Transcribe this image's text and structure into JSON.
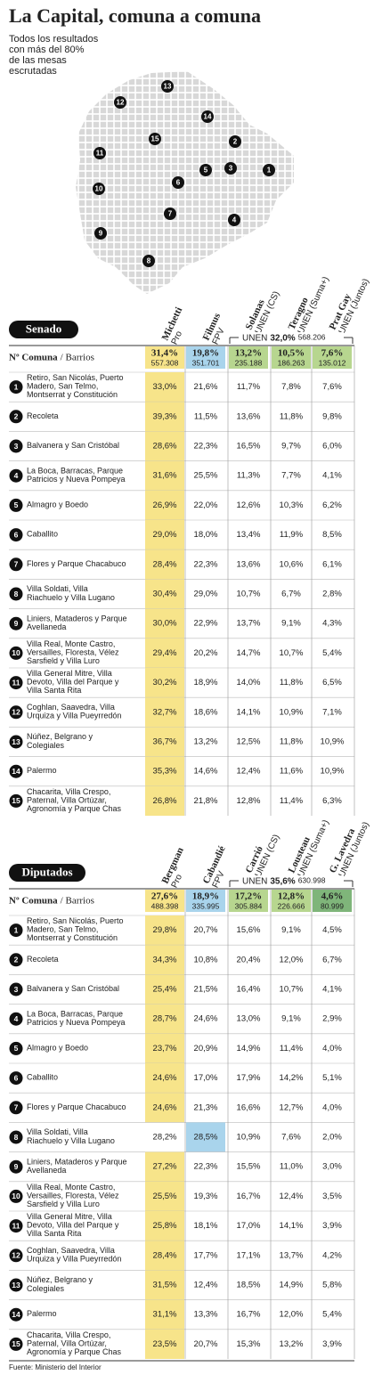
{
  "header": {
    "title": "La Capital, comuna a comuna",
    "subtitle": [
      "Todos los resultados",
      "con más del 80%",
      "de las mesas",
      "escrutadas"
    ]
  },
  "map": {
    "labels": [
      {
        "text": "13",
        "x": 188,
        "y": 97
      },
      {
        "text": "12",
        "x": 135,
        "y": 115
      },
      {
        "text": "14",
        "x": 233,
        "y": 131
      },
      {
        "text": "15",
        "x": 174,
        "y": 156
      },
      {
        "text": "2",
        "x": 264,
        "y": 159
      },
      {
        "text": "11",
        "x": 112,
        "y": 172
      },
      {
        "text": "5",
        "x": 231,
        "y": 191
      },
      {
        "text": "3",
        "x": 259,
        "y": 189
      },
      {
        "text": "1",
        "x": 302,
        "y": 191
      },
      {
        "text": "10",
        "x": 111,
        "y": 212
      },
      {
        "text": "6",
        "x": 200,
        "y": 205
      },
      {
        "text": "7",
        "x": 191,
        "y": 240
      },
      {
        "text": "4",
        "x": 263,
        "y": 247
      },
      {
        "text": "9",
        "x": 113,
        "y": 262
      },
      {
        "text": "8",
        "x": 167,
        "y": 293
      }
    ]
  },
  "tables": [
    {
      "title": "Senado",
      "comuna_label": "Nº Comuna",
      "barrios_label": "/ Barrios",
      "candidates": [
        {
          "name": "Michetti",
          "party": "Pro",
          "total": "31,4%",
          "votes": "557.308"
        },
        {
          "name": "Filmus",
          "party": "FPV",
          "total": "19,8%",
          "votes": "351.701"
        },
        {
          "name": "Solanas",
          "party": "UNEN (CS)",
          "total": "13,2%",
          "votes": "235.188"
        },
        {
          "name": "Teragno",
          "party": "UNEN (Suma+)",
          "total": "10,5%",
          "votes": "186.263"
        },
        {
          "name": "Prat Gay",
          "party": "UNEN (Juntos)",
          "total": "7,6%",
          "votes": "135.012"
        }
      ],
      "group": {
        "name": "UNEN",
        "total": "32,0%",
        "votes": "568.206"
      },
      "rows": [
        {
          "n": "1",
          "barrios": "Retiro, San Nicolás, Puerto Madero, San Telmo, Montserrat y Constitución",
          "values": [
            "33,0%",
            "21,6%",
            "11,7%",
            "7,8%",
            "7,6%"
          ]
        },
        {
          "n": "2",
          "barrios": "Recoleta",
          "values": [
            "39,3%",
            "11,5%",
            "13,6%",
            "11,8%",
            "9,8%"
          ]
        },
        {
          "n": "3",
          "barrios": "Balvanera y San Cristóbal",
          "values": [
            "28,6%",
            "22,3%",
            "16,5%",
            "9,7%",
            "6,0%"
          ]
        },
        {
          "n": "4",
          "barrios": "La Boca, Barracas, Parque Patricios y Nueva Pompeya",
          "values": [
            "31,6%",
            "25,5%",
            "11,3%",
            "7,7%",
            "4,1%"
          ]
        },
        {
          "n": "5",
          "barrios": "Almagro y Boedo",
          "values": [
            "26,9%",
            "22,0%",
            "12,6%",
            "10,3%",
            "6,2%"
          ]
        },
        {
          "n": "6",
          "barrios": "Caballito",
          "values": [
            "29,0%",
            "18,0%",
            "13,4%",
            "11,9%",
            "8,5%"
          ]
        },
        {
          "n": "7",
          "barrios": "Flores y Parque Chacabuco",
          "values": [
            "28,4%",
            "22,3%",
            "13,6%",
            "10,6%",
            "6,1%"
          ]
        },
        {
          "n": "8",
          "barrios": "Villa Soldati, Villa Riachuelo y Villa Lugano",
          "values": [
            "30,4%",
            "29,0%",
            "10,7%",
            "6,7%",
            "2,8%"
          ]
        },
        {
          "n": "9",
          "barrios": "Liniers, Mataderos y Parque Avellaneda",
          "values": [
            "30,0%",
            "22,9%",
            "13,7%",
            "9,1%",
            "4,3%"
          ]
        },
        {
          "n": "10",
          "barrios": "Villa Real, Monte Castro, Versailles, Floresta, Vélez Sarsfield y Villa Luro",
          "values": [
            "29,4%",
            "20,2%",
            "14,7%",
            "10,7%",
            "5,4%"
          ]
        },
        {
          "n": "11",
          "barrios": "Villa General Mitre, Villa Devoto, Villa del Parque y Villa Santa Rita",
          "values": [
            "30,2%",
            "18,9%",
            "14,0%",
            "11,8%",
            "6,5%"
          ]
        },
        {
          "n": "12",
          "barrios": "Coghlan, Saavedra, Villa Urquiza y Villa Pueyrredón",
          "values": [
            "32,7%",
            "18,6%",
            "14,1%",
            "10,9%",
            "7,1%"
          ]
        },
        {
          "n": "13",
          "barrios": "Núñez, Belgrano y Colegiales",
          "values": [
            "36,7%",
            "13,2%",
            "12,5%",
            "11,8%",
            "10,9%"
          ]
        },
        {
          "n": "14",
          "barrios": "Palermo",
          "values": [
            "35,3%",
            "14,6%",
            "12,4%",
            "11,6%",
            "10,9%"
          ]
        },
        {
          "n": "15",
          "barrios": "Chacarita, Villa Crespo, Paternal, Villa Ortúzar, Agronomía y Parque Chas",
          "values": [
            "26,8%",
            "21,8%",
            "12,8%",
            "11,4%",
            "6,3%"
          ]
        }
      ]
    },
    {
      "title": "Diputados",
      "comuna_label": "Nº Comuna",
      "barrios_label": "/ Barrios",
      "candidates": [
        {
          "name": "Bergman",
          "party": "Pro",
          "total": "27,6%",
          "votes": "488.398"
        },
        {
          "name": "Cabandié",
          "party": "FPV",
          "total": "18,9%",
          "votes": "335.995"
        },
        {
          "name": "Carrió",
          "party": "UNEN (CS)",
          "total": "17,2%",
          "votes": "305.884"
        },
        {
          "name": "Lousteau",
          "party": "UNEN (Suma+)",
          "total": "12,8%",
          "votes": "226.666"
        },
        {
          "name": "G. Lavedra",
          "party": "UNEN (Juntos)",
          "total": "4,6%",
          "votes": "80.999"
        }
      ],
      "group": {
        "name": "UNEN",
        "total": "35,6%",
        "votes": "630.998"
      },
      "rows": [
        {
          "n": "1",
          "barrios": "Retiro, San Nicolás, Puerto Madero, San Telmo, Montserrat y Constitución",
          "values": [
            "29,8%",
            "20,7%",
            "15,6%",
            "9,1%",
            "4,5%"
          ]
        },
        {
          "n": "2",
          "barrios": "Recoleta",
          "values": [
            "34,3%",
            "10,8%",
            "20,4%",
            "12,0%",
            "6,7%"
          ]
        },
        {
          "n": "3",
          "barrios": "Balvanera y San Cristóbal",
          "values": [
            "25,4%",
            "21,5%",
            "16,4%",
            "10,7%",
            "4,1%"
          ]
        },
        {
          "n": "4",
          "barrios": "La Boca, Barracas, Parque Patricios y Nueva Pompeya",
          "values": [
            "28,7%",
            "24,6%",
            "13,0%",
            "9,1%",
            "2,9%"
          ]
        },
        {
          "n": "5",
          "barrios": "Almagro y Boedo",
          "values": [
            "23,7%",
            "20,9%",
            "14,9%",
            "11,4%",
            "4,0%"
          ]
        },
        {
          "n": "6",
          "barrios": "Caballito",
          "values": [
            "24,6%",
            "17,0%",
            "17,9%",
            "14,2%",
            "5,1%"
          ]
        },
        {
          "n": "7",
          "barrios": "Flores y Parque Chacabuco",
          "values": [
            "24,6%",
            "21,3%",
            "16,6%",
            "12,7%",
            "4,0%"
          ]
        },
        {
          "n": "8",
          "barrios": "Villa Soldati, Villa Riachuelo y Villa Lugano",
          "values": [
            "28,2%",
            "28,5%",
            "10,9%",
            "7,6%",
            "2,0%"
          ]
        },
        {
          "n": "9",
          "barrios": "Liniers, Mataderos y Parque Avellaneda",
          "values": [
            "27,2%",
            "22,3%",
            "15,5%",
            "11,0%",
            "3,0%"
          ]
        },
        {
          "n": "10",
          "barrios": "Villa Real, Monte Castro, Versailles, Floresta, Vélez Sarsfield y Villa Luro",
          "values": [
            "25,5%",
            "19,3%",
            "16,7%",
            "12,4%",
            "3,5%"
          ]
        },
        {
          "n": "11",
          "barrios": "Villa General Mitre, Villa Devoto, Villa del Parque y Villa Santa Rita",
          "values": [
            "25,8%",
            "18,1%",
            "17,0%",
            "14,1%",
            "3,9%"
          ]
        },
        {
          "n": "12",
          "barrios": "Coghlan, Saavedra, Villa Urquiza y Villa Pueyrredón",
          "values": [
            "28,4%",
            "17,7%",
            "17,1%",
            "13,7%",
            "4,2%"
          ]
        },
        {
          "n": "13",
          "barrios": "Núñez, Belgrano y Colegiales",
          "values": [
            "31,5%",
            "12,4%",
            "18,5%",
            "14,9%",
            "5,8%"
          ]
        },
        {
          "n": "14",
          "barrios": "Palermo",
          "values": [
            "31,1%",
            "13,3%",
            "16,7%",
            "12,0%",
            "5,4%"
          ]
        },
        {
          "n": "15",
          "barrios": "Chacarita, Villa Crespo, Paternal, Villa Ortúzar, Agronomía y Parque Chas",
          "values": [
            "23,5%",
            "20,7%",
            "15,3%",
            "13,2%",
            "3,9%"
          ]
        }
      ]
    }
  ],
  "footer": "Fuente: Ministerio del Interior"
}
